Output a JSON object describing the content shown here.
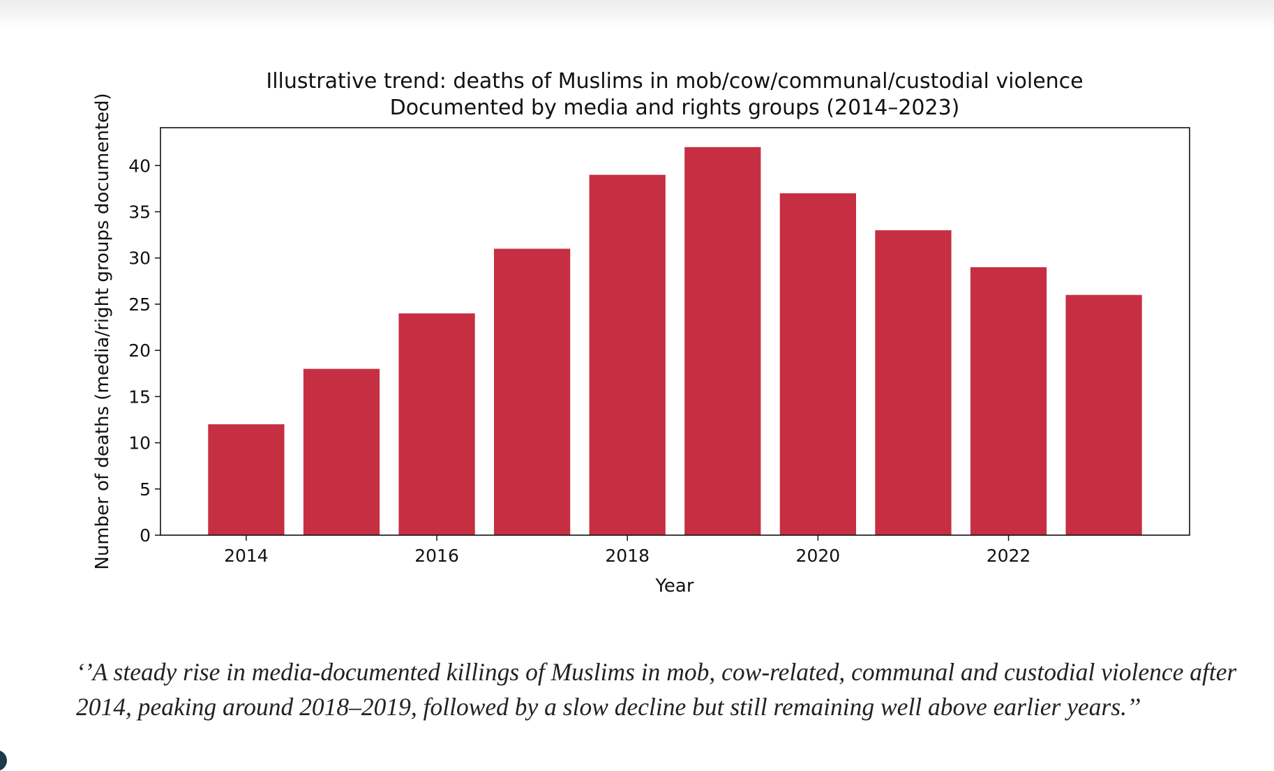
{
  "chart_data": {
    "type": "bar",
    "title": "Illustrative trend: deaths of Muslims in mob/cow/communal/custodial violence",
    "subtitle": "Documented by media and rights groups (2014–2023)",
    "xlabel": "Year",
    "ylabel": "Number of deaths (media/right groups documented)",
    "categories": [
      2014,
      2015,
      2016,
      2017,
      2018,
      2019,
      2020,
      2021,
      2022,
      2023
    ],
    "values": [
      12,
      18,
      24,
      31,
      39,
      42,
      37,
      33,
      29,
      26
    ],
    "xticks": [
      2014,
      2016,
      2018,
      2020,
      2022
    ],
    "yticks": [
      0,
      5,
      10,
      15,
      20,
      25,
      30,
      35,
      40
    ],
    "xlim": [
      2013.1,
      2023.9
    ],
    "ylim": [
      0,
      44.1
    ],
    "grid": false,
    "bar_color": "#c62f42"
  },
  "caption": "‘’A steady rise in media-documented killings of Muslims in mob, cow-related, communal and custodial violence after 2014, peaking around 2018–2019, followed by a slow decline but still remaining well above earlier years.’’"
}
